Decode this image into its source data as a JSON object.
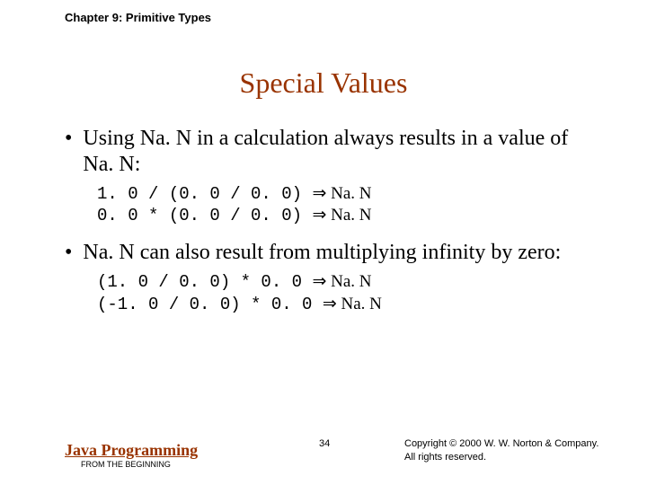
{
  "chapter": "Chapter 9: Primitive Types",
  "title": "Special Values",
  "bullet1": "Using Na. N in a calculation always results in a value of Na. N:",
  "code1_line1_expr": "1. 0 / (0. 0 / 0. 0) ",
  "code1_line1_result": " Na. N",
  "code1_line2_expr": "0. 0 * (0. 0 / 0. 0) ",
  "code1_line2_result": " Na. N",
  "bullet2": "Na. N can also result from multiplying infinity by zero:",
  "code2_line1_expr": "(1. 0 / 0. 0) * 0. 0 ",
  "code2_line1_result": " Na. N",
  "code2_line2_expr": "(-1. 0 / 0. 0) * 0. 0 ",
  "code2_line2_result": " Na. N",
  "arrow": "⇒",
  "footer_title": "Java Programming",
  "footer_subtitle": "FROM THE BEGINNING",
  "page_number": "34",
  "copyright_line1": "Copyright © 2000 W. W. Norton & Company.",
  "copyright_line2": "All rights reserved."
}
